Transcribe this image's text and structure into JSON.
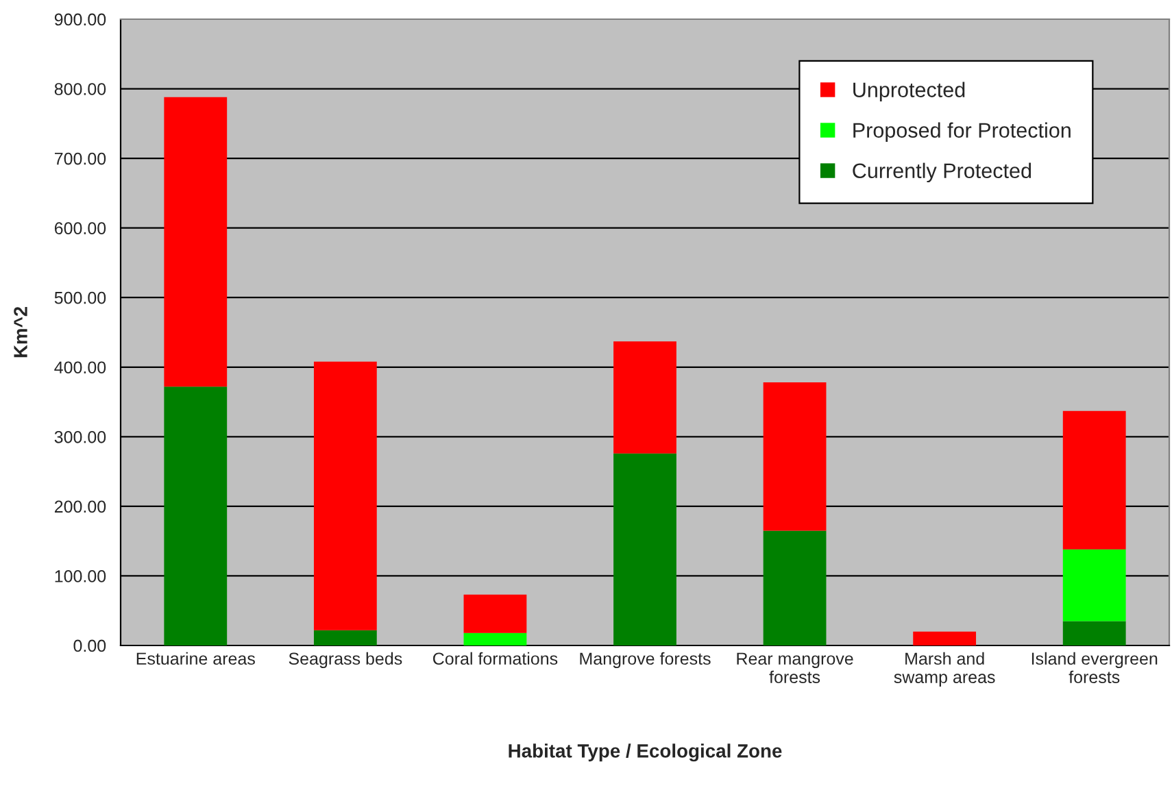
{
  "chart_data": {
    "type": "bar",
    "stacked": true,
    "xlabel": "Habitat Type / Ecological Zone",
    "ylabel": "Km^2",
    "categories": [
      "Estuarine areas",
      "Seagrass beds",
      "Coral formations",
      "Mangrove forests",
      "Rear mangrove\nforests",
      "Marsh and\nswamp areas",
      "Island evergreen\nforests"
    ],
    "series": [
      {
        "name": "Currently Protected",
        "color": "#008000",
        "values": [
          372,
          22,
          0,
          276,
          165,
          0,
          35
        ]
      },
      {
        "name": "Proposed for Protection",
        "color": "#00ff00",
        "values": [
          0,
          0,
          18,
          0,
          0,
          0,
          103
        ]
      },
      {
        "name": "Unprotected",
        "color": "#ff0000",
        "values": [
          416,
          386,
          55,
          161,
          213,
          20,
          199
        ]
      }
    ],
    "ylim": [
      0,
      900
    ],
    "yticks": [
      {
        "value": 0,
        "label": "0.00"
      },
      {
        "value": 100,
        "label": "100.00"
      },
      {
        "value": 200,
        "label": "200.00"
      },
      {
        "value": 300,
        "label": "300.00"
      },
      {
        "value": 400,
        "label": "400.00"
      },
      {
        "value": 500,
        "label": "500.00"
      },
      {
        "value": 600,
        "label": "600.00"
      },
      {
        "value": 700,
        "label": "700.00"
      },
      {
        "value": 800,
        "label": "800.00"
      },
      {
        "value": 900,
        "label": "900.00"
      }
    ],
    "grid": "y",
    "legend": "top right"
  }
}
